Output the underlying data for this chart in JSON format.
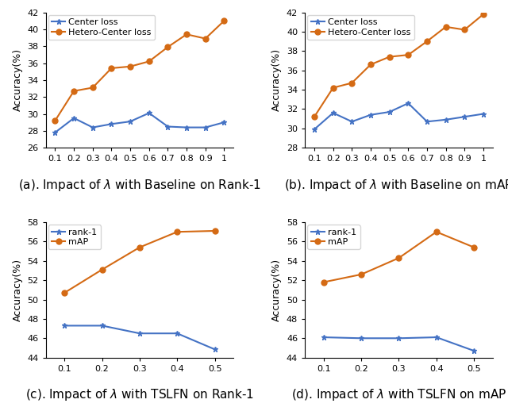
{
  "subplot_a": {
    "caption": "(a). Impact of $\\lambda$ with Baseline on Rank-1",
    "x": [
      0.1,
      0.2,
      0.3,
      0.4,
      0.5,
      0.6,
      0.7,
      0.8,
      0.9,
      1.0
    ],
    "center_loss": [
      27.8,
      29.5,
      28.4,
      28.8,
      29.1,
      30.1,
      28.5,
      28.4,
      28.4,
      29.0
    ],
    "hetero_center_loss": [
      29.2,
      32.7,
      33.1,
      35.4,
      35.6,
      36.2,
      37.9,
      39.4,
      38.9,
      41.0
    ],
    "ylim": [
      26,
      42
    ],
    "yticks": [
      26,
      28,
      30,
      32,
      34,
      36,
      38,
      40,
      42
    ],
    "ylabel": "Accuracy(%)"
  },
  "subplot_b": {
    "caption": "(b). Impact of $\\lambda$ with Baseline on mAP",
    "x": [
      0.1,
      0.2,
      0.3,
      0.4,
      0.5,
      0.6,
      0.7,
      0.8,
      0.9,
      1.0
    ],
    "center_loss": [
      29.9,
      31.6,
      30.7,
      31.4,
      31.7,
      32.6,
      30.7,
      30.9,
      31.2,
      31.5
    ],
    "hetero_center_loss": [
      31.2,
      34.2,
      34.7,
      36.6,
      37.4,
      37.6,
      39.0,
      40.5,
      40.2,
      41.8
    ],
    "ylim": [
      28,
      42
    ],
    "yticks": [
      28,
      30,
      32,
      34,
      36,
      38,
      40,
      42
    ],
    "ylabel": "Accuracy(%)"
  },
  "subplot_c": {
    "caption": "(c). Impact of $\\lambda$ with TSLFN on Rank-1",
    "x": [
      0.1,
      0.2,
      0.3,
      0.4,
      0.5
    ],
    "rank1": [
      47.3,
      47.3,
      46.5,
      46.5,
      44.85
    ],
    "mAP": [
      50.7,
      53.1,
      55.4,
      57.0,
      57.1
    ],
    "ylim": [
      44,
      58
    ],
    "yticks": [
      44,
      46,
      48,
      50,
      52,
      54,
      56,
      58
    ],
    "ylabel": "Accuracy(%)"
  },
  "subplot_d": {
    "caption": "(d). Impact of $\\lambda$ with TSLFN on mAP",
    "x": [
      0.1,
      0.2,
      0.3,
      0.4,
      0.5
    ],
    "rank1": [
      46.1,
      46.0,
      46.0,
      46.1,
      44.7
    ],
    "mAP": [
      51.8,
      52.6,
      54.3,
      57.0,
      55.4
    ],
    "ylim": [
      44,
      58
    ],
    "yticks": [
      44,
      46,
      48,
      50,
      52,
      54,
      56,
      58
    ],
    "ylabel": "Accuracy(%)"
  },
  "blue_color": "#4472C4",
  "orange_color": "#D46A14",
  "line_width": 1.5,
  "marker_size": 5,
  "xticks_ab": [
    0.1,
    0.2,
    0.3,
    0.4,
    0.5,
    0.6,
    0.7,
    0.8,
    0.9,
    1.0
  ],
  "xtick_labels_ab": [
    "0.1",
    "0.2",
    "0.3",
    "0.4",
    "0.5",
    "0.6",
    "0.7",
    "0.8",
    "0.9",
    "1"
  ],
  "xticks_cd": [
    0.1,
    0.2,
    0.3,
    0.4,
    0.5
  ],
  "xtick_labels_cd": [
    "0.1",
    "0.2",
    "0.3",
    "0.4",
    "0.5"
  ],
  "legend_center": [
    "Center loss",
    "Hetero-Center loss"
  ],
  "legend_tslfn": [
    "rank-1",
    "mAP"
  ],
  "caption_fontsize": 11,
  "tick_fontsize": 8,
  "ylabel_fontsize": 9,
  "legend_fontsize": 8
}
